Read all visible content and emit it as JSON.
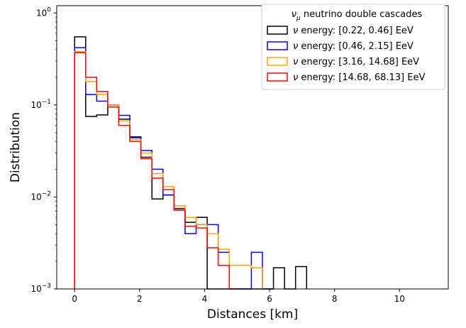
{
  "chart_data": {
    "type": "histogram-step",
    "title": "",
    "xlabel": "Distances [km]",
    "ylabel": "Distribution",
    "xlim": [
      -0.55,
      11.5
    ],
    "ylim": [
      0.001,
      1.2
    ],
    "yscale": "log",
    "grid": false,
    "legend_position": "top-right",
    "legend_title": "ν_μ neutrino double cascades",
    "x_ticks": [
      0,
      2,
      4,
      6,
      8,
      10
    ],
    "x_tick_labels": [
      "0",
      "2",
      "4",
      "6",
      "8",
      "10"
    ],
    "y_ticks": [
      0.001,
      0.01,
      0.1,
      1
    ],
    "y_tick_labels": [
      {
        "base": "10",
        "exp": "−3"
      },
      {
        "base": "10",
        "exp": "−2"
      },
      {
        "base": "10",
        "exp": "−1"
      },
      {
        "base": "10",
        "exp": "0"
      }
    ],
    "bin_width": 0.34,
    "series": [
      {
        "name": "ν energy: [0.22, 0.46] EeV",
        "color": "#000000",
        "edges": [
          0,
          0.34,
          0.68,
          1.02,
          1.36,
          1.7,
          2.04,
          2.38,
          2.72,
          3.06,
          3.4,
          3.74,
          4.08,
          6.12,
          6.46,
          6.8,
          7.14
        ],
        "values": [
          0.55,
          0.075,
          0.078,
          0.1,
          0.07,
          0.045,
          0.027,
          0.0095,
          0.0105,
          0.0075,
          0.0053,
          0.006,
          0.001,
          0.0017,
          0.001,
          0.00175,
          0.001
        ]
      },
      {
        "name": "ν energy: [0.46, 2.15] EeV",
        "color": "#0000ff",
        "edges": [
          0,
          0.34,
          0.68,
          1.02,
          1.36,
          1.7,
          2.04,
          2.38,
          2.72,
          3.06,
          3.4,
          3.74,
          4.08,
          4.42,
          4.76,
          5.1,
          5.44,
          5.78,
          6.12
        ],
        "values": [
          0.42,
          0.13,
          0.11,
          0.1,
          0.077,
          0.044,
          0.032,
          0.02,
          0.0105,
          0.0072,
          0.004,
          0.005,
          0.005,
          0.0025,
          0.001,
          0.001,
          0.0025,
          0.001
        ]
      },
      {
        "name": "ν energy: [3.16, 14.68] EeV",
        "color": "#ffa500",
        "edges": [
          0,
          0.34,
          0.68,
          1.02,
          1.36,
          1.7,
          2.04,
          2.38,
          2.72,
          3.06,
          3.4,
          3.74,
          4.08,
          4.42,
          4.76,
          5.1,
          5.44,
          5.78
        ],
        "values": [
          0.38,
          0.18,
          0.13,
          0.1,
          0.067,
          0.042,
          0.03,
          0.018,
          0.013,
          0.008,
          0.006,
          0.005,
          0.004,
          0.0027,
          0.0018,
          0.0018,
          0.0017,
          0.001
        ]
      },
      {
        "name": "ν energy: [14.68, 68.13] EeV",
        "color": "#ff0000",
        "edges": [
          0,
          0.34,
          0.68,
          1.02,
          1.36,
          1.7,
          2.04,
          2.38,
          2.72,
          3.06,
          3.4,
          3.74,
          4.08,
          4.42,
          4.76,
          5.1
        ],
        "values": [
          0.37,
          0.2,
          0.14,
          0.095,
          0.06,
          0.04,
          0.026,
          0.016,
          0.012,
          0.0072,
          0.0048,
          0.0046,
          0.0028,
          0.0018,
          0.001
        ]
      }
    ]
  }
}
